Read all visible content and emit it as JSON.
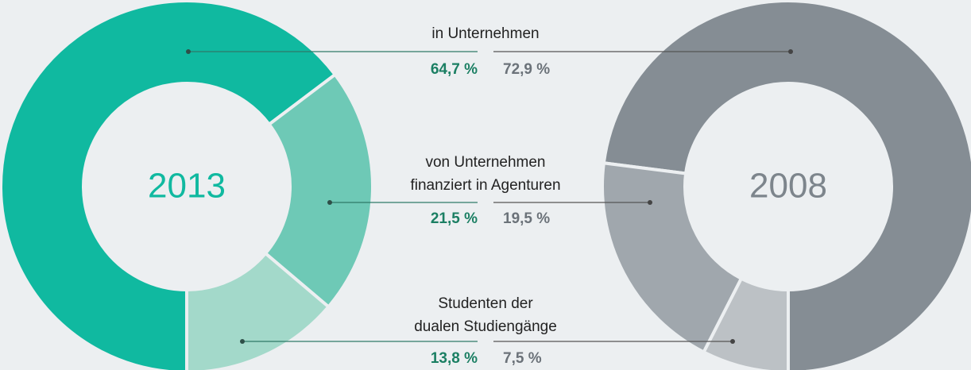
{
  "chart_data": {
    "type": "pie",
    "categories": [
      [
        "in Unternehmen"
      ],
      [
        "von Unternehmen",
        "finanziert in Agenturen"
      ],
      [
        "Studenten der",
        "dualen Studiengänge"
      ]
    ],
    "series": [
      {
        "name": "2013",
        "color": "#10b9a0",
        "colors": [
          "#10b9a0",
          "#6ec9b6",
          "#a3d9ca"
        ],
        "direction": "clockwise",
        "values": [
          64.7,
          21.5,
          13.8
        ],
        "value_labels": [
          "64,7 %",
          "21,5 %",
          "13,8 %"
        ]
      },
      {
        "name": "2008",
        "color": "#7d858c",
        "colors": [
          "#858d94",
          "#a0a7ad",
          "#bcc1c5"
        ],
        "direction": "counterclockwise",
        "values": [
          72.9,
          19.5,
          7.5
        ],
        "value_labels": [
          "72,9 %",
          "19,5 %",
          "7,5 %"
        ]
      }
    ]
  }
}
